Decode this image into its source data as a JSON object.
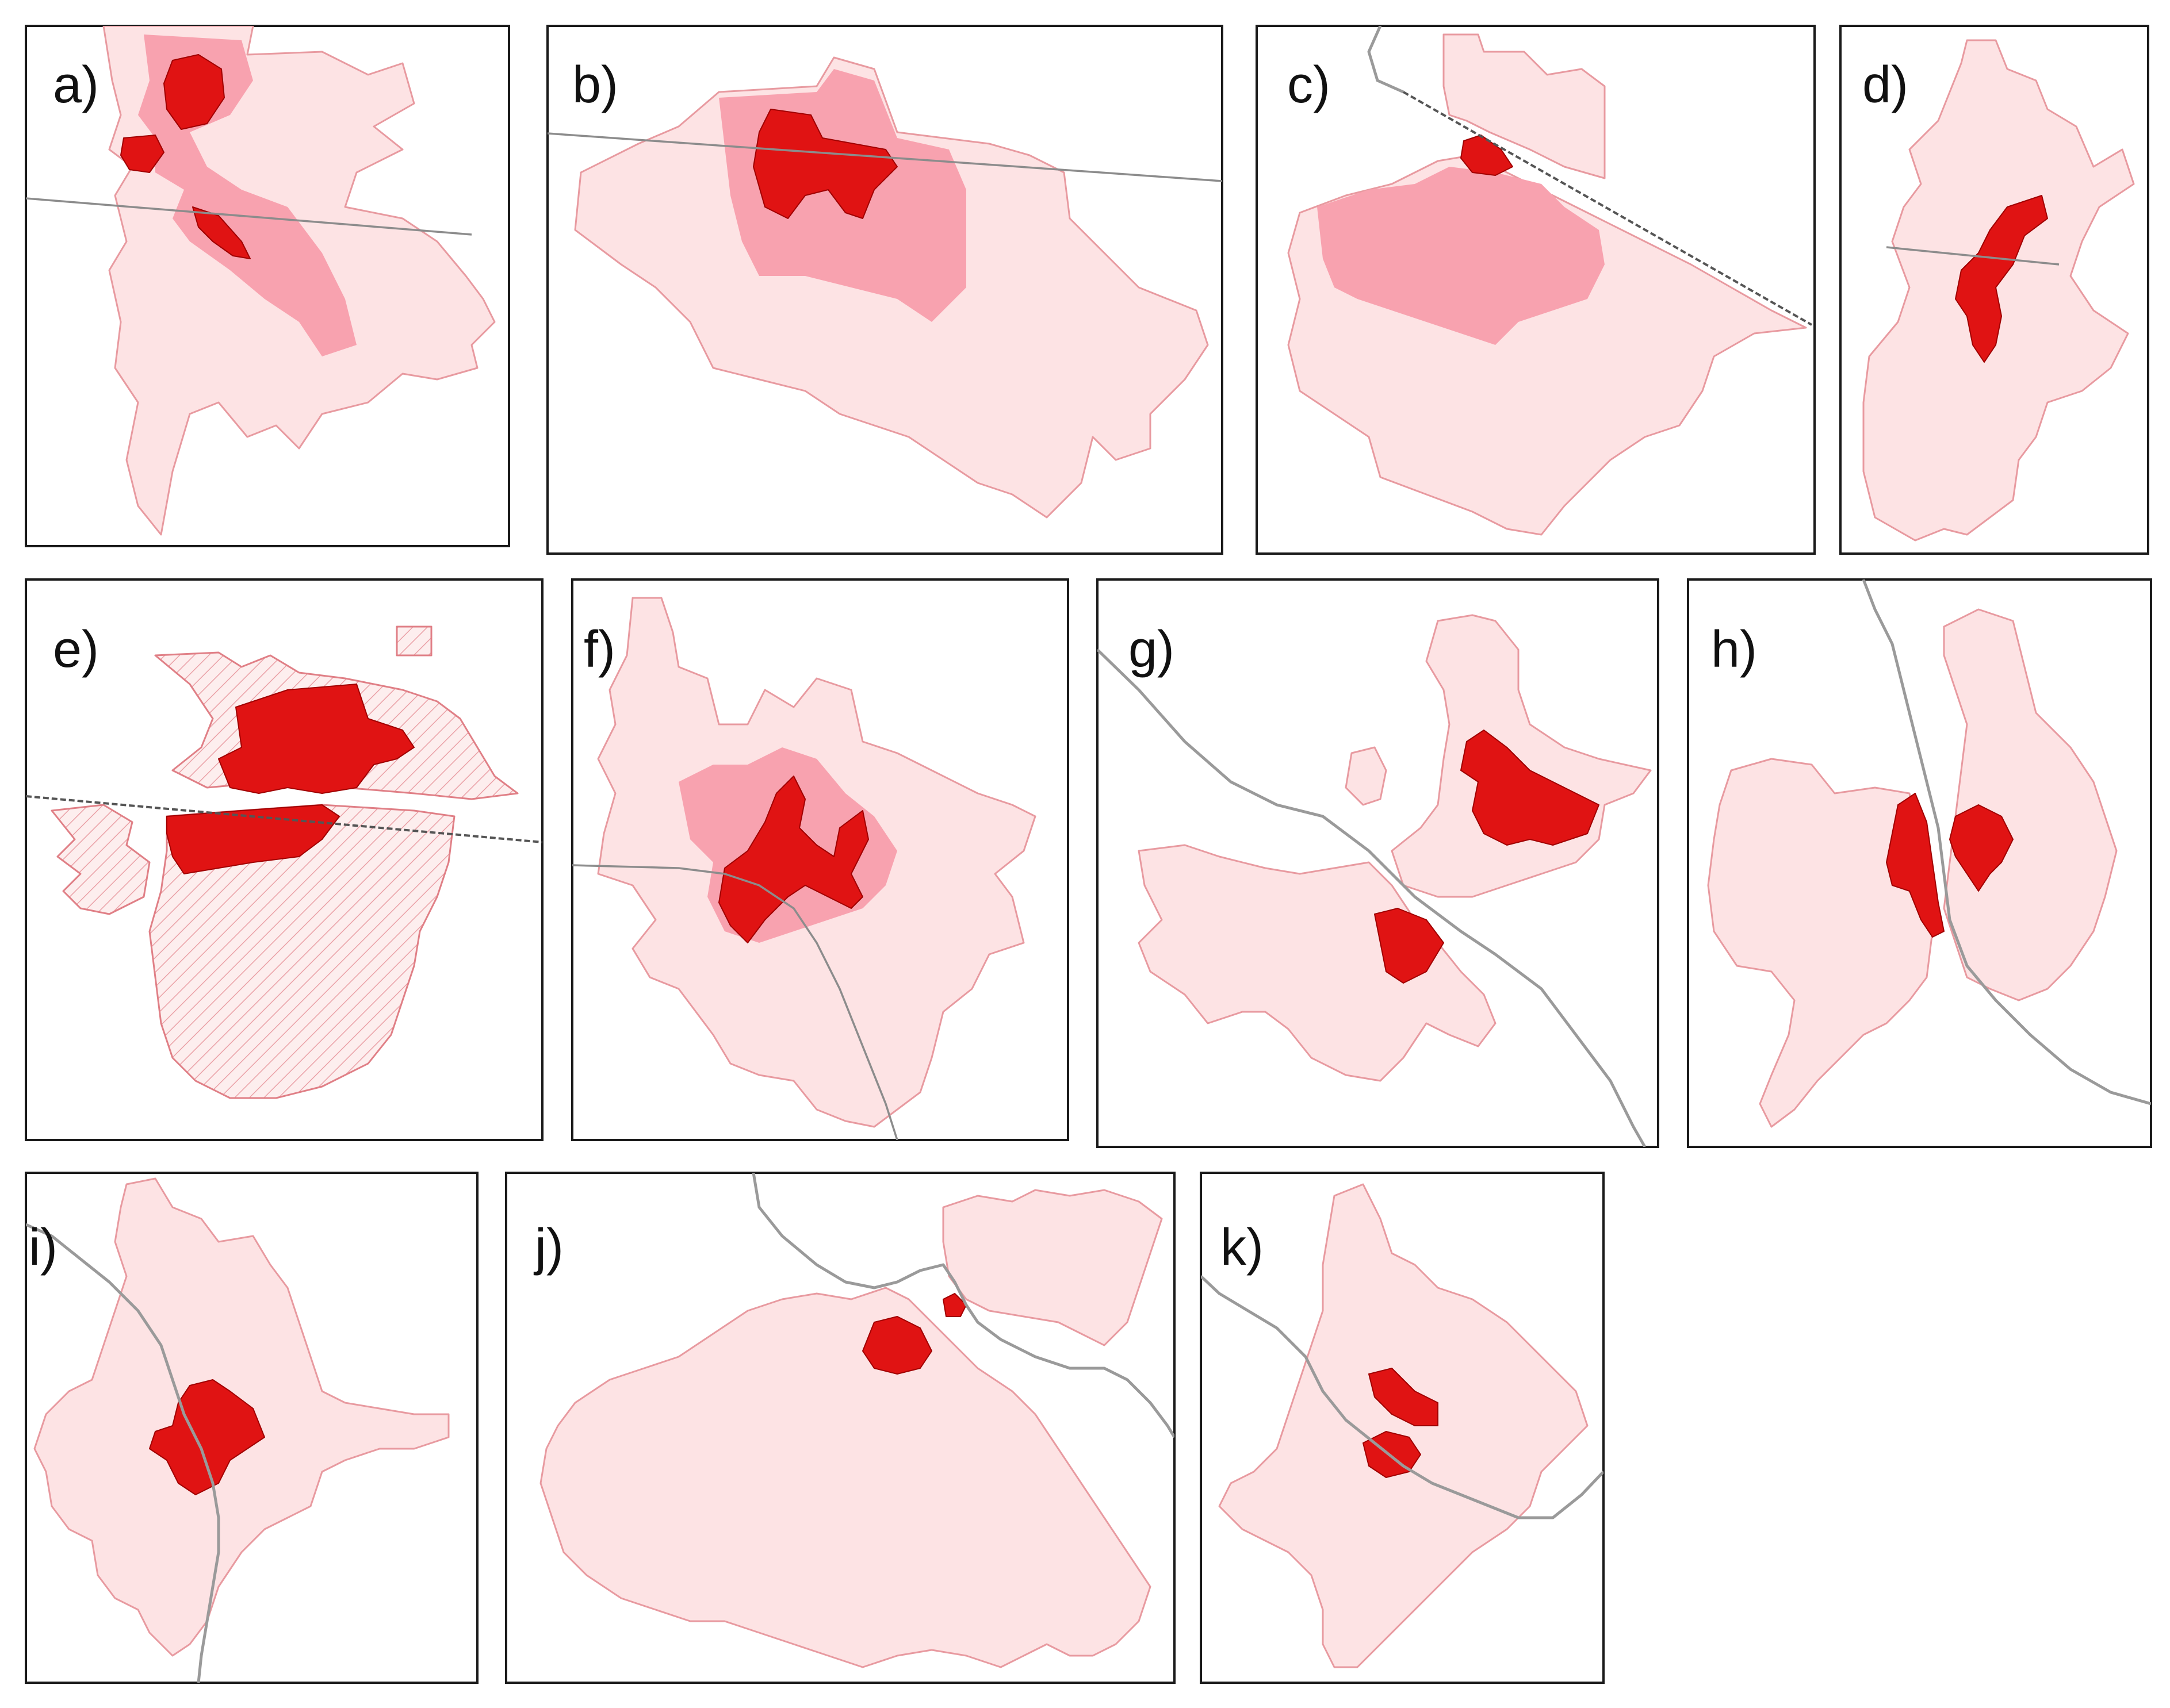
{
  "figure": {
    "panels": [
      {
        "id": "a",
        "label": "a)"
      },
      {
        "id": "b",
        "label": "b)"
      },
      {
        "id": "c",
        "label": "c)"
      },
      {
        "id": "d",
        "label": "d)"
      },
      {
        "id": "e",
        "label": "e)"
      },
      {
        "id": "f",
        "label": "f)"
      },
      {
        "id": "g",
        "label": "g)"
      },
      {
        "id": "h",
        "label": "h)"
      },
      {
        "id": "i",
        "label": "i)"
      },
      {
        "id": "j",
        "label": "j)"
      },
      {
        "id": "k",
        "label": "k)"
      }
    ]
  },
  "colors": {
    "urban_extent_light": "#fde3e4",
    "urban_extent_mid": "#f8a2af",
    "urban_core": "#e01313",
    "border_line": "#8c8c8c",
    "river_line": "#9a9a9a"
  }
}
